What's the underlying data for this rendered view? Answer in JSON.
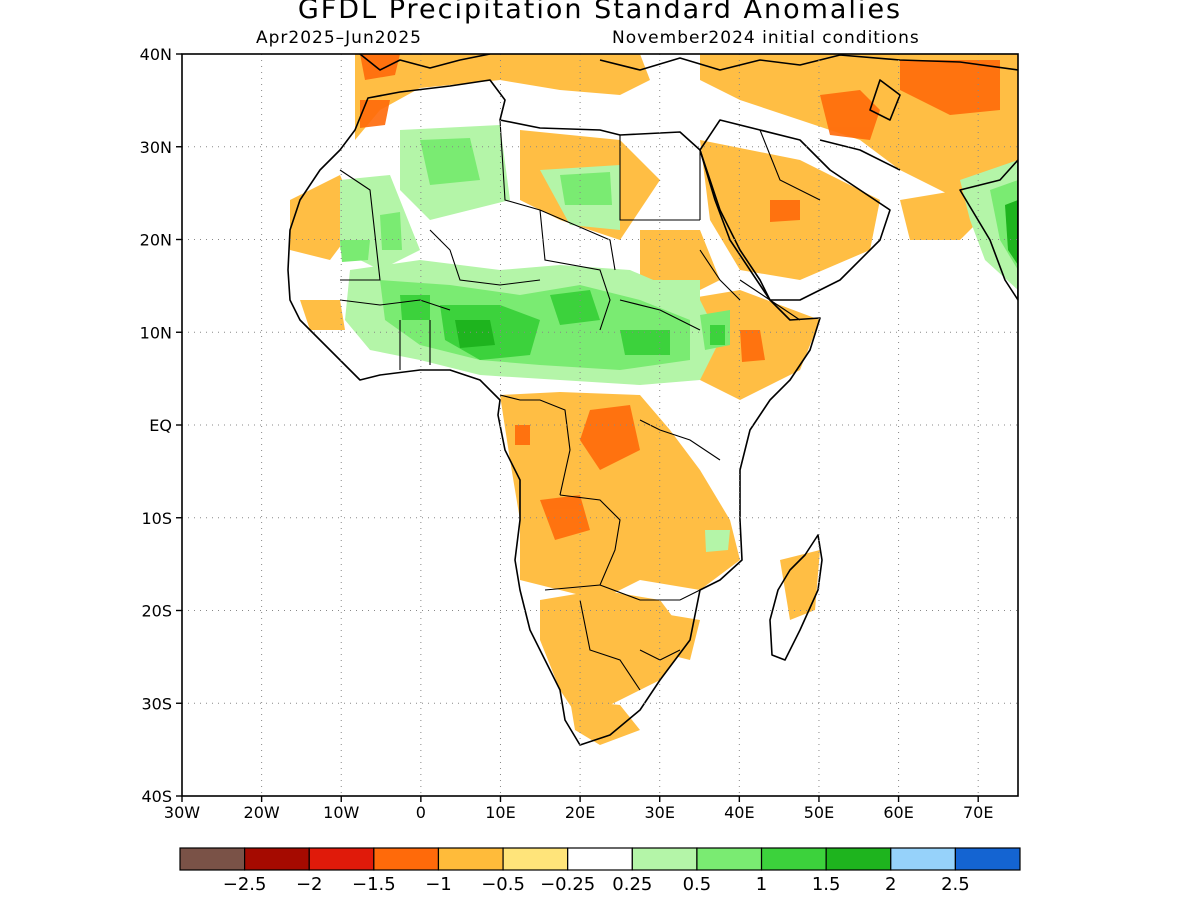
{
  "title": "GFDL Precipitation Standard Anomalies",
  "subtitle_left": "Apr2025–Jun2025",
  "subtitle_right": "November2024 initial conditions",
  "map": {
    "lon_range": [
      -30,
      75
    ],
    "lat_range": [
      -40,
      40
    ],
    "lon_ticks": [
      {
        "v": -30,
        "label": "30W"
      },
      {
        "v": -20,
        "label": "20W"
      },
      {
        "v": -10,
        "label": "10W"
      },
      {
        "v": 0,
        "label": "0"
      },
      {
        "v": 10,
        "label": "10E"
      },
      {
        "v": 20,
        "label": "20E"
      },
      {
        "v": 30,
        "label": "30E"
      },
      {
        "v": 40,
        "label": "40E"
      },
      {
        "v": 50,
        "label": "50E"
      },
      {
        "v": 60,
        "label": "60E"
      },
      {
        "v": 70,
        "label": "70E"
      }
    ],
    "lat_ticks": [
      {
        "v": 40,
        "label": "40N"
      },
      {
        "v": 30,
        "label": "30N"
      },
      {
        "v": 20,
        "label": "20N"
      },
      {
        "v": 10,
        "label": "10N"
      },
      {
        "v": 0,
        "label": "EQ"
      },
      {
        "v": -10,
        "label": "10S"
      },
      {
        "v": -20,
        "label": "20S"
      },
      {
        "v": -30,
        "label": "30S"
      },
      {
        "v": -40,
        "label": "40S"
      }
    ],
    "gridlines": "dotted"
  },
  "colorbar": {
    "colors": [
      "#7a5247",
      "#a50a00",
      "#e01a0a",
      "#ff6a0a",
      "#ffbb3a",
      "#ffe47a",
      "#ffffff",
      "#b4f5a8",
      "#7aeb72",
      "#3cd23c",
      "#1eb41e",
      "#96d2fa",
      "#1464d2"
    ],
    "labels": [
      "−2.5",
      "−2",
      "−1.5",
      "−1",
      "−0.5",
      "−0.25",
      "0.25",
      "0.5",
      "1",
      "1.5",
      "2",
      "2.5"
    ]
  }
}
